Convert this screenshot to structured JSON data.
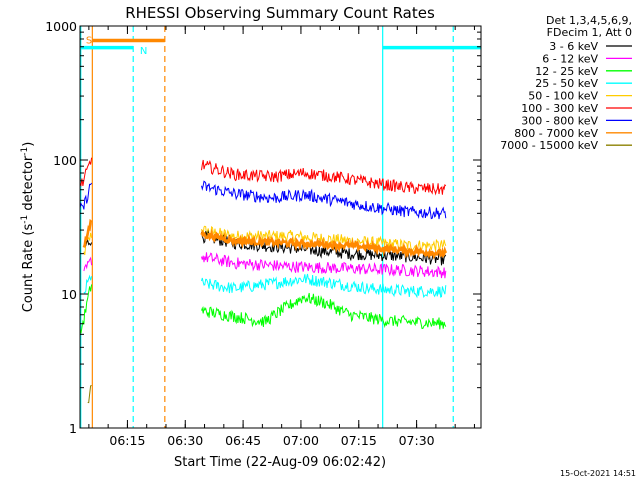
{
  "chart_data": {
    "type": "line",
    "title": "RHESSI Observing Summary Count Rates",
    "xlabel": "Start Time (22-Aug-09 06:02:42)",
    "ylabel": "Count Rate (s⁻¹ detector⁻¹)",
    "ylabel_parts": {
      "main": "Count Rate (s",
      "sup1": "-1",
      "mid": " detector",
      "sup2": "-1",
      "end": ")"
    },
    "y_scale": "log",
    "ylim": [
      1,
      1000
    ],
    "xlim_minutes": [
      0,
      104
    ],
    "x_ticks": [
      {
        "minute": 12.3,
        "label": "06:15"
      },
      {
        "minute": 27.3,
        "label": "06:30"
      },
      {
        "minute": 42.3,
        "label": "06:45"
      },
      {
        "minute": 57.3,
        "label": "07:00"
      },
      {
        "minute": 72.3,
        "label": "07:15"
      },
      {
        "minute": 87.3,
        "label": "07:30"
      }
    ],
    "y_ticks": [
      {
        "value": 1,
        "label": "1"
      },
      {
        "value": 10,
        "label": "10"
      },
      {
        "value": 100,
        "label": "100"
      },
      {
        "value": 1000,
        "label": "1000"
      }
    ],
    "legend_header": [
      "Det 1,3,4,5,6,9,",
      "FDecim 1, Att 0"
    ],
    "legend_position": "right",
    "grid": false,
    "series": [
      {
        "name": "3 - 6 keV",
        "color": "#000000",
        "seg1": [
          [
            1,
            22
          ],
          [
            2,
            24
          ],
          [
            3,
            26
          ]
        ],
        "seg2": [
          [
            31.5,
            27
          ],
          [
            40,
            24
          ],
          [
            55,
            22
          ],
          [
            70,
            20
          ],
          [
            85,
            19
          ],
          [
            95,
            18
          ]
        ]
      },
      {
        "name": "6 - 12 keV",
        "color": "#ff00ff",
        "seg1": [
          [
            1,
            14
          ],
          [
            2,
            16
          ],
          [
            3,
            18
          ]
        ],
        "seg2": [
          [
            31.5,
            19
          ],
          [
            40,
            17
          ],
          [
            55,
            16
          ],
          [
            70,
            15.5
          ],
          [
            85,
            15
          ],
          [
            95,
            14.5
          ]
        ]
      },
      {
        "name": "12 - 25 keV",
        "color": "#00ff00",
        "seg1": [
          [
            0,
            5
          ],
          [
            1,
            6.5
          ],
          [
            2,
            9
          ],
          [
            3,
            12
          ]
        ],
        "seg2": [
          [
            31.5,
            7.5
          ],
          [
            40,
            6.8
          ],
          [
            48,
            6.2
          ],
          [
            52,
            7.5
          ],
          [
            58,
            9.5
          ],
          [
            64,
            8.5
          ],
          [
            70,
            7
          ],
          [
            80,
            6.3
          ],
          [
            95,
            6
          ]
        ]
      },
      {
        "name": "25 - 50 keV",
        "color": "#00ffff",
        "seg1": [
          [
            1,
            10
          ],
          [
            2,
            12
          ],
          [
            3,
            14
          ]
        ],
        "seg2": [
          [
            31.5,
            12
          ],
          [
            40,
            11
          ],
          [
            50,
            12
          ],
          [
            58,
            13
          ],
          [
            66,
            12
          ],
          [
            75,
            11
          ],
          [
            85,
            10.5
          ],
          [
            95,
            10.5
          ]
        ]
      },
      {
        "name": "50 - 100 keV",
        "color": "#ffcc00",
        "seg1": [
          [
            1,
            20
          ],
          [
            2,
            24
          ],
          [
            3,
            28
          ]
        ],
        "seg2": [
          [
            31.5,
            30
          ],
          [
            40,
            27
          ],
          [
            55,
            27
          ],
          [
            70,
            25
          ],
          [
            85,
            23
          ],
          [
            95,
            23
          ]
        ]
      },
      {
        "name": "100 - 300 keV",
        "color": "#ff0000",
        "seg1": [
          [
            0,
            65
          ],
          [
            1,
            70
          ],
          [
            2,
            85
          ],
          [
            3,
            100
          ]
        ],
        "seg2": [
          [
            31.5,
            92
          ],
          [
            40,
            78
          ],
          [
            50,
            75
          ],
          [
            58,
            80
          ],
          [
            66,
            75
          ],
          [
            75,
            68
          ],
          [
            85,
            62
          ],
          [
            95,
            60
          ]
        ]
      },
      {
        "name": "300 - 800 keV",
        "color": "#0000ff",
        "seg1": [
          [
            0,
            42
          ],
          [
            1,
            45
          ],
          [
            2,
            55
          ],
          [
            3,
            68
          ]
        ],
        "seg2": [
          [
            31.5,
            64
          ],
          [
            40,
            56
          ],
          [
            50,
            52
          ],
          [
            58,
            55
          ],
          [
            66,
            50
          ],
          [
            75,
            45
          ],
          [
            85,
            41
          ],
          [
            95,
            40
          ]
        ]
      },
      {
        "name": "800 - 7000 keV",
        "color": "#ff8800",
        "seg1": [
          [
            1,
            23
          ],
          [
            2,
            28
          ],
          [
            3,
            35
          ]
        ],
        "seg2": [
          [
            31.5,
            28
          ],
          [
            40,
            25
          ],
          [
            55,
            24
          ],
          [
            70,
            23
          ],
          [
            85,
            21
          ],
          [
            95,
            20
          ]
        ]
      },
      {
        "name": "7000 - 15000 keV",
        "color": "#8b8000",
        "seg1": [
          [
            2,
            1.5
          ],
          [
            3,
            2
          ]
        ],
        "seg2": []
      }
    ],
    "annotations": {
      "letters": [
        {
          "text": "S",
          "color": "#ff8800",
          "minute": 0.5,
          "value": 790
        },
        {
          "text": "N",
          "color": "#00ffff",
          "minute": 14.5,
          "value": 660
        }
      ],
      "bars": [
        {
          "color": "#00ffff",
          "start": 0,
          "end": 13.8,
          "value": 690
        },
        {
          "color": "#ff8800",
          "start": 3.2,
          "end": 22,
          "value": 780
        },
        {
          "color": "#00ffff",
          "start": 78.5,
          "end": 104,
          "value": 690
        }
      ],
      "vlines": [
        {
          "color": "#00ffff",
          "minute": 0.2,
          "style": "solid"
        },
        {
          "color": "#ff8800",
          "minute": 3.2,
          "style": "solid"
        },
        {
          "color": "#00ffff",
          "minute": 13.8,
          "style": "dashed"
        },
        {
          "color": "#ff8800",
          "minute": 22.0,
          "style": "dashed"
        },
        {
          "color": "#00ffff",
          "minute": 78.5,
          "style": "solid"
        },
        {
          "color": "#00ffff",
          "minute": 96.8,
          "style": "dashed"
        }
      ]
    }
  },
  "footer": {
    "timestamp": "15-Oct-2021 14:51"
  }
}
